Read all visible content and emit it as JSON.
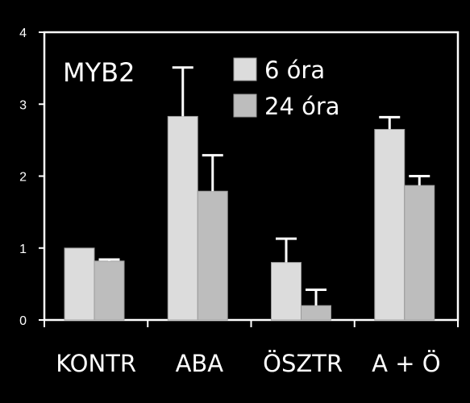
{
  "chart_data": {
    "type": "bar",
    "title": "MYB2",
    "categories": [
      "KONTR",
      "ABA",
      "ÖSZTR",
      "A + Ö"
    ],
    "series": [
      {
        "name": "6 óra",
        "color": "#dcdcdc",
        "values": [
          1.0,
          2.83,
          0.8,
          2.65
        ],
        "errors": [
          0.0,
          0.68,
          0.33,
          0.17
        ]
      },
      {
        "name": "24 óra",
        "color": "#bdbdbd",
        "values": [
          0.82,
          1.79,
          0.2,
          1.87
        ],
        "errors": [
          0.02,
          0.5,
          0.22,
          0.13
        ]
      }
    ],
    "ylim": [
      0,
      4
    ],
    "yticks": [
      "0",
      "1",
      "2",
      "3",
      "4"
    ],
    "xlabel": "",
    "ylabel": "",
    "grid": false,
    "legend_position": "top-center"
  }
}
